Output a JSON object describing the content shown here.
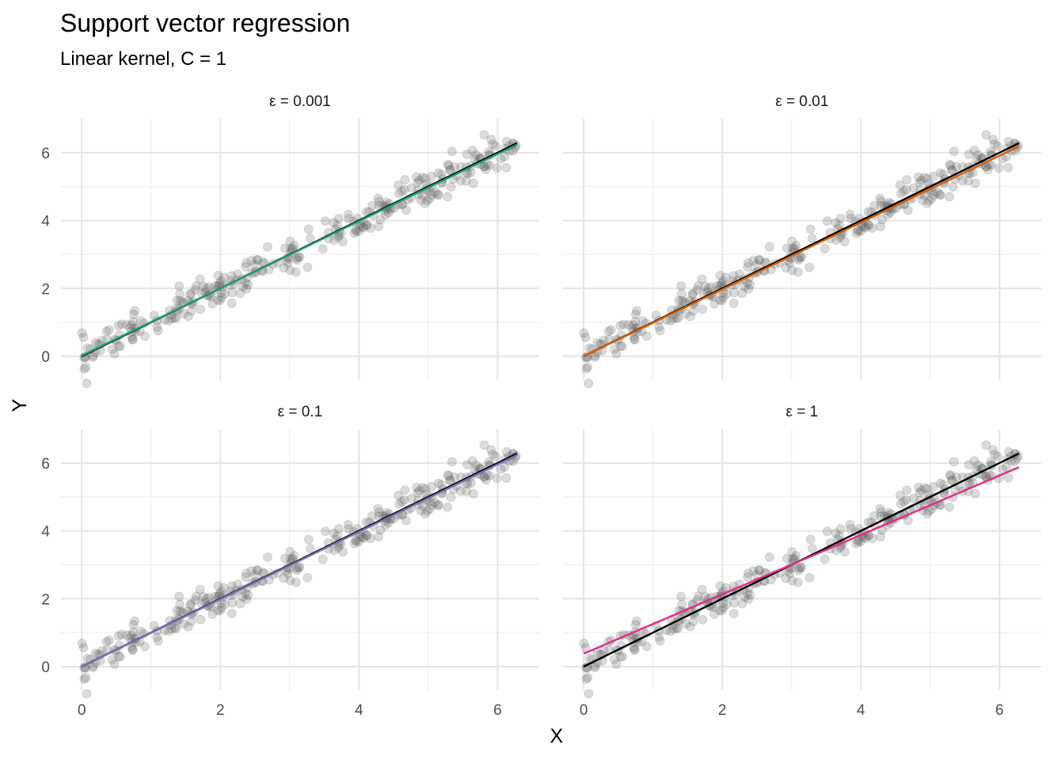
{
  "chart_data": {
    "type": "scatter",
    "title": "Support vector regression",
    "subtitle": "Linear kernel, C = 1",
    "xlabel": "X",
    "ylabel": "Y",
    "xlim": [
      -0.3,
      6.6
    ],
    "ylim": [
      -0.7,
      7.0
    ],
    "x_ticks": [
      0,
      2,
      4,
      6
    ],
    "y_ticks": [
      0,
      2,
      4,
      6
    ],
    "grid": true,
    "reference_line": {
      "color": "#000000",
      "intercept": 0.0,
      "slope": 1.0
    },
    "points": {
      "color": "#595959",
      "opacity": 0.22,
      "n": 300,
      "x_range": [
        0,
        6.28
      ],
      "trend": {
        "intercept": 0.0,
        "slope": 1.0
      },
      "spread": 0.25
    },
    "panels": [
      {
        "strip_label": "ε = 0.001",
        "fit_color": "#1b9e77",
        "fit": {
          "intercept": 0.02,
          "slope": 0.99
        }
      },
      {
        "strip_label": "ε = 0.01",
        "fit_color": "#d95f02",
        "fit": {
          "intercept": 0.0,
          "slope": 0.985
        }
      },
      {
        "strip_label": "ε = 0.1",
        "fit_color": "#7570b3",
        "fit": {
          "intercept": 0.0,
          "slope": 0.993
        }
      },
      {
        "strip_label": "ε = 1",
        "fit_color": "#e7298a",
        "fit": {
          "intercept": 0.38,
          "slope": 0.875
        }
      }
    ]
  }
}
